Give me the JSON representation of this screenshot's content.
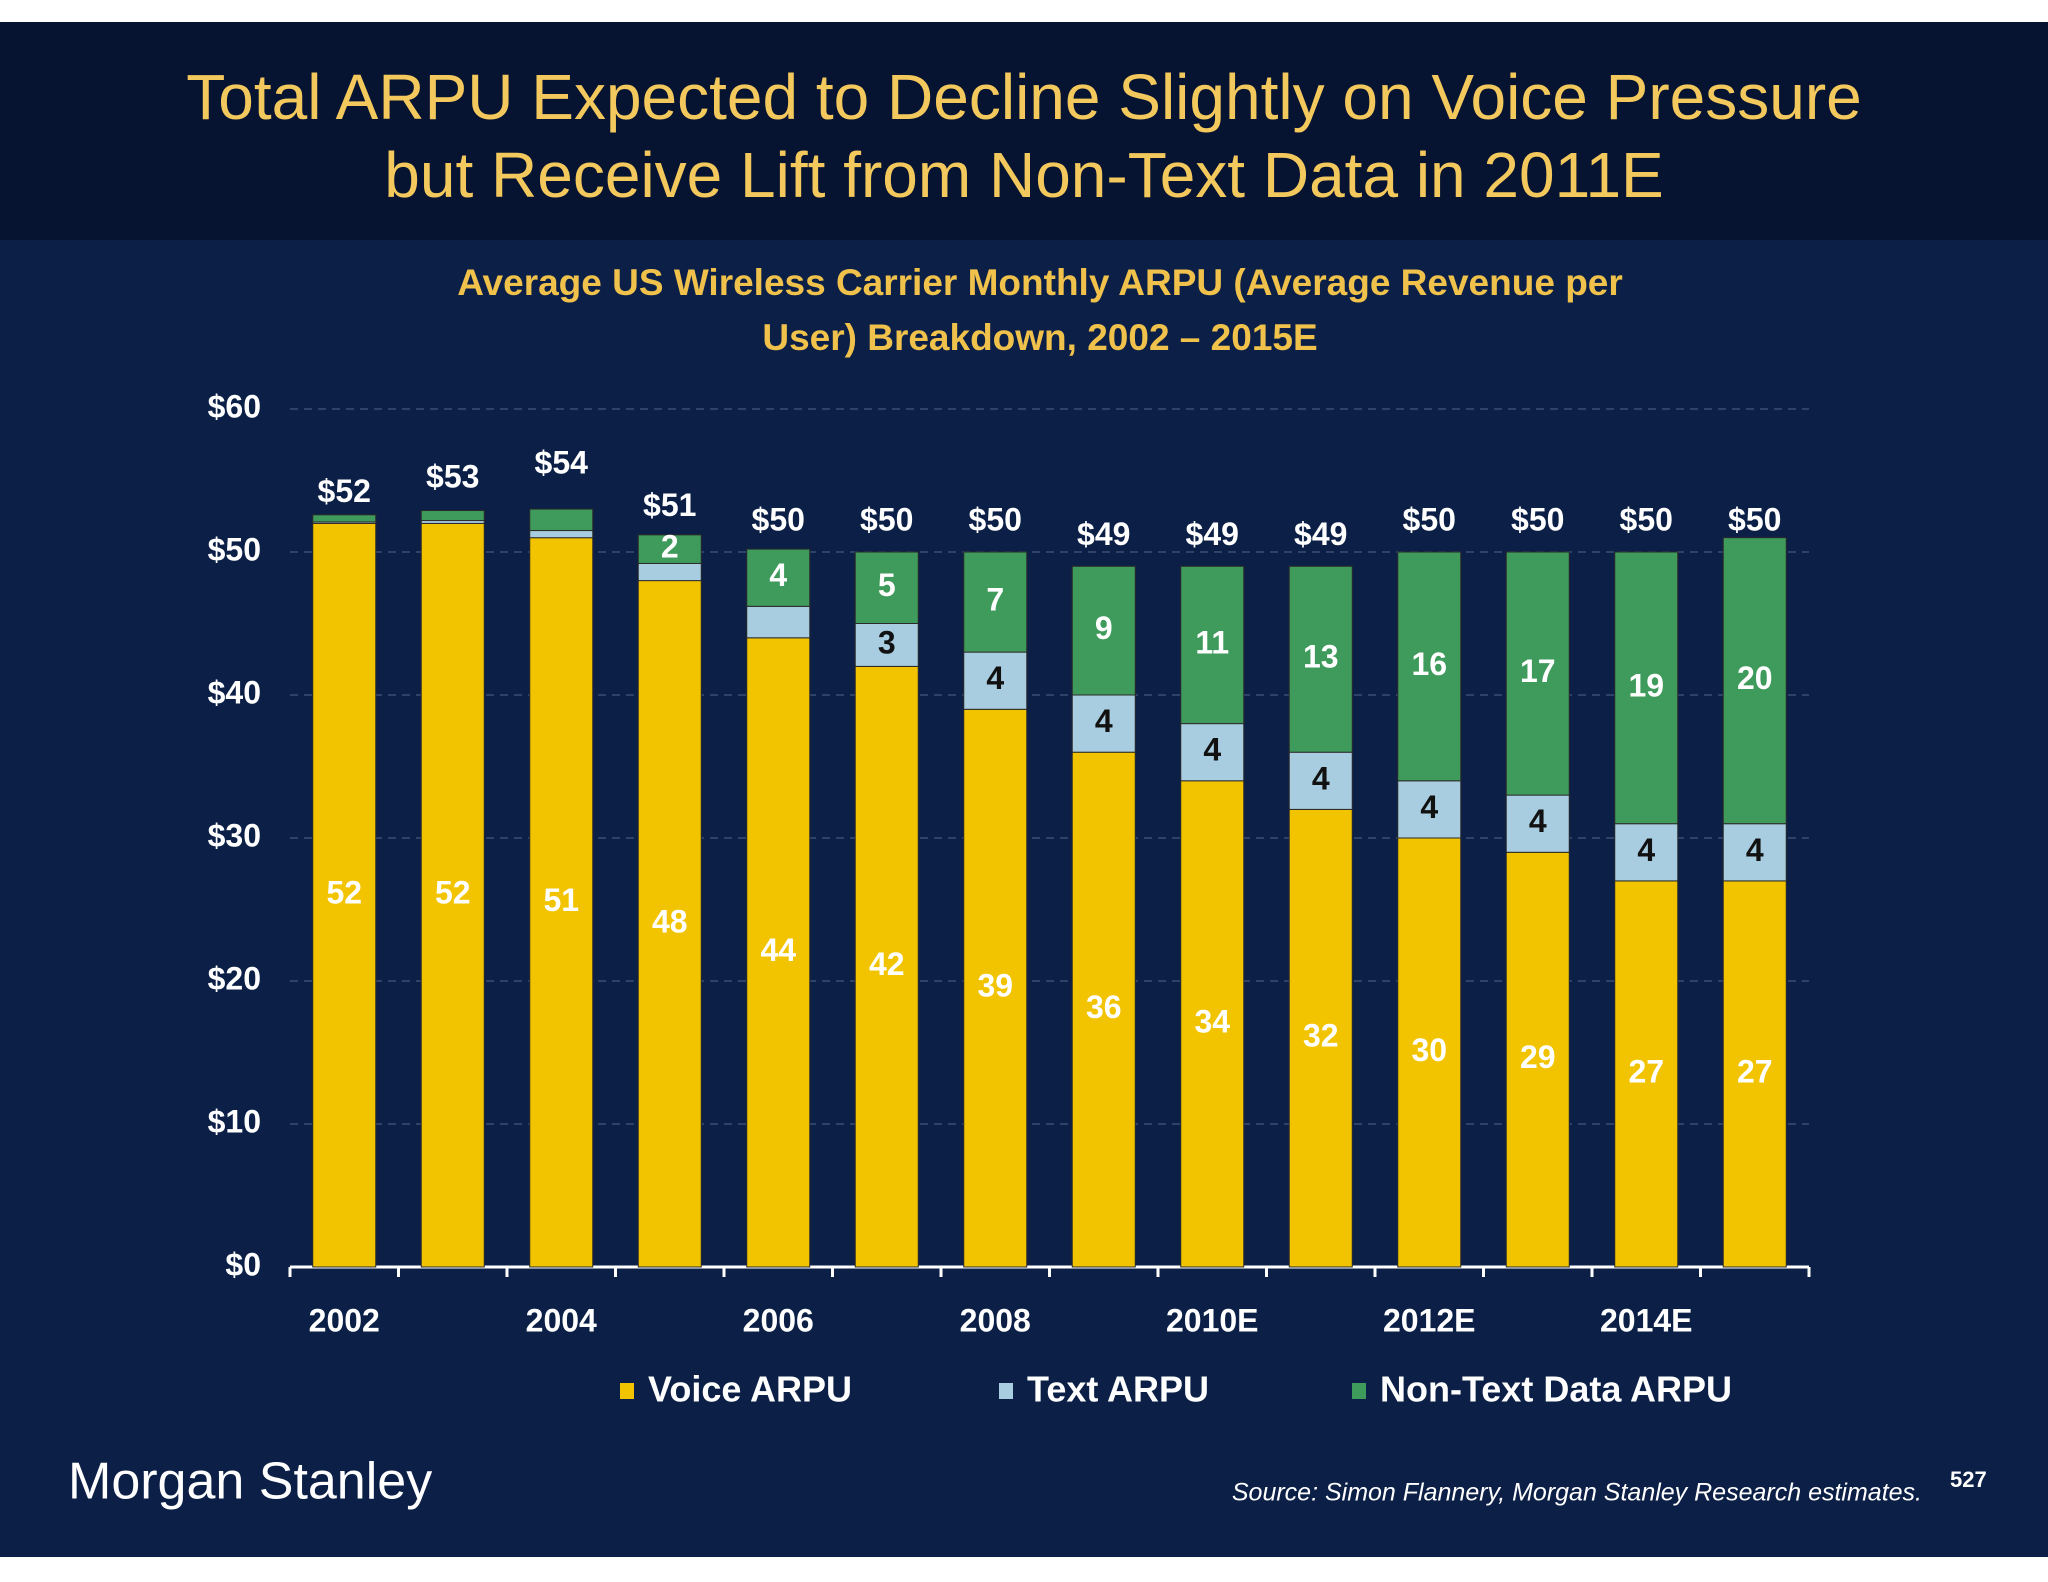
{
  "header": {
    "title_lines": [
      "Total ARPU Expected to Decline Slightly on Voice Pressure",
      "but Receive Lift from Non-Text Data in 2011E"
    ]
  },
  "chart_data": {
    "type": "stacked_bar",
    "subtitle_lines": [
      "Average US Wireless Carrier Monthly ARPU (Average Revenue per",
      "User) Breakdown, 2002 – 2015E"
    ],
    "categories": [
      "2002",
      null,
      "2004",
      null,
      "2006",
      null,
      "2008",
      null,
      "2010E",
      null,
      "2012E",
      null,
      "2014E",
      null
    ],
    "series": [
      {
        "name": "Voice ARPU",
        "color": "#f2c400",
        "label_color": "#ffffff",
        "values": [
          52,
          52,
          51,
          48,
          44,
          42,
          39,
          36,
          34,
          32,
          30,
          29,
          27,
          27
        ],
        "value_labels": [
          "52",
          "52",
          "51",
          "48",
          "44",
          "42",
          "39",
          "36",
          "34",
          "32",
          "30",
          "29",
          "27",
          "27"
        ]
      },
      {
        "name": "Text ARPU",
        "color": "#a8cde0",
        "label_color": "#111111",
        "values": [
          0.1,
          0.2,
          0.5,
          1.2,
          2.2,
          3,
          4,
          4,
          4,
          4,
          4,
          4,
          4,
          4
        ],
        "value_labels": [
          null,
          null,
          null,
          null,
          null,
          "3",
          "4",
          "4",
          "4",
          "4",
          "4",
          "4",
          "4",
          "4"
        ]
      },
      {
        "name": "Non-Text Data ARPU",
        "color": "#3f9b5c",
        "label_color": "#ffffff",
        "values": [
          0.5,
          0.7,
          1.5,
          2,
          4,
          5,
          7,
          9,
          11,
          13,
          16,
          17,
          19,
          20
        ],
        "value_labels": [
          null,
          null,
          null,
          "2",
          "4",
          "5",
          "7",
          "9",
          "11",
          "13",
          "16",
          "17",
          "19",
          "20"
        ]
      }
    ],
    "totals": [
      52,
      53,
      54,
      51,
      50,
      50,
      50,
      49,
      49,
      49,
      50,
      50,
      50,
      50
    ],
    "total_labels": [
      "$52",
      "$53",
      "$54",
      "$51",
      "$50",
      "$50",
      "$50",
      "$49",
      "$49",
      "$49",
      "$50",
      "$50",
      "$50",
      "$50"
    ],
    "ylim": [
      0,
      60
    ],
    "yticks": [
      {
        "value": 0,
        "label": "$0"
      },
      {
        "value": 10,
        "label": "$10"
      },
      {
        "value": 20,
        "label": "$20"
      },
      {
        "value": 30,
        "label": "$30"
      },
      {
        "value": 40,
        "label": "$40"
      },
      {
        "value": 50,
        "label": "$50"
      },
      {
        "value": 60,
        "label": "$60"
      }
    ],
    "grid": true
  },
  "footer": {
    "logo": "Morgan Stanley",
    "source": "Source: Simon Flannery, Morgan Stanley Research estimates.",
    "page_number": "527"
  }
}
